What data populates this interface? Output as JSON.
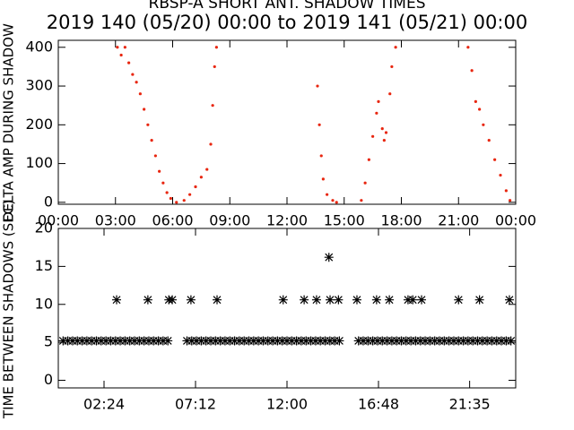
{
  "chart_data": [
    {
      "type": "scatter",
      "title": "RBSP-A SHORT ANT. SHADOW TIMES",
      "subtitle": "2019 140 (05/20) 00:00 to 2019 141 (05/21) 00:00",
      "y_label": "DELTA AMP DURING SHADOW",
      "xlim": [
        0,
        24
      ],
      "ylim": [
        -5,
        418
      ],
      "xticks": [
        {
          "value": 0,
          "label": "00:00"
        },
        {
          "value": 3,
          "label": "03:00"
        },
        {
          "value": 6,
          "label": "06:00"
        },
        {
          "value": 9,
          "label": "09:00"
        },
        {
          "value": 12,
          "label": "12:00"
        },
        {
          "value": 15,
          "label": "15:00"
        },
        {
          "value": 18,
          "label": "18:00"
        },
        {
          "value": 21,
          "label": "21:00"
        },
        {
          "value": 24,
          "label": "00:00"
        }
      ],
      "yticks": [
        0,
        100,
        200,
        300,
        400
      ],
      "marker": "dot",
      "series": [
        {
          "color": "#e8260f",
          "x": [
            3.1,
            3.3,
            3.5,
            3.7,
            3.9,
            4.1,
            4.3,
            4.5,
            4.7,
            4.9,
            5.1,
            5.3,
            5.5,
            5.7,
            5.9,
            6.2,
            6.6,
            6.9,
            7.2,
            7.5,
            7.8,
            8.0,
            8.1,
            8.2,
            8.3,
            13.6,
            13.7,
            13.8,
            13.9,
            14.1,
            14.4,
            14.6,
            15.9,
            16.1,
            16.3,
            16.5,
            16.7,
            16.8,
            17.0,
            17.1,
            17.2,
            17.4,
            17.5,
            17.7,
            21.5,
            21.7,
            21.9,
            22.1,
            22.3,
            22.6,
            22.9,
            23.2,
            23.5,
            23.7
          ],
          "values": [
            400,
            380,
            400,
            360,
            330,
            310,
            280,
            240,
            200,
            160,
            120,
            80,
            50,
            25,
            10,
            0,
            5,
            20,
            40,
            65,
            85,
            150,
            250,
            350,
            400,
            300,
            200,
            120,
            60,
            20,
            5,
            0,
            5,
            50,
            110,
            170,
            230,
            260,
            190,
            160,
            180,
            280,
            350,
            400,
            400,
            340,
            260,
            240,
            200,
            160,
            110,
            70,
            30,
            5
          ]
        }
      ]
    },
    {
      "type": "scatter",
      "y_label": "TIME BETWEEN SHADOWS (SEC)",
      "xlim": [
        0,
        24
      ],
      "ylim": [
        -1,
        20
      ],
      "xticks": [
        {
          "value": 2.4,
          "label": "02:24"
        },
        {
          "value": 7.2,
          "label": "07:12"
        },
        {
          "value": 12,
          "label": "12:00"
        },
        {
          "value": 16.8,
          "label": "16:48"
        },
        {
          "value": 21.583,
          "label": "21:35"
        }
      ],
      "yticks": [
        0,
        5,
        10,
        15,
        20
      ],
      "marker": "asterisk",
      "series": [
        {
          "color": "#000000",
          "x": [
            0.25,
            0.5,
            0.75,
            1,
            1.25,
            1.5,
            1.75,
            2,
            2.25,
            2.5,
            2.75,
            3,
            3.25,
            3.5,
            3.75,
            4,
            4.25,
            4.5,
            4.75,
            5,
            5.25,
            5.5,
            5.75,
            6.75,
            7,
            7.25,
            7.5,
            7.75,
            8,
            8.25,
            8.5,
            8.75,
            9,
            9.25,
            9.5,
            9.75,
            10,
            10.25,
            10.5,
            10.75,
            11,
            11.25,
            11.5,
            11.75,
            12,
            12.25,
            12.5,
            12.75,
            13,
            13.25,
            13.5,
            13.75,
            14,
            14.25,
            14.5,
            14.75,
            15.75,
            16,
            16.25,
            16.5,
            16.75,
            17,
            17.25,
            17.5,
            17.75,
            18,
            18.25,
            18.5,
            18.75,
            19,
            19.25,
            19.5,
            19.75,
            20,
            20.25,
            20.5,
            20.75,
            21,
            21.25,
            21.5,
            21.75,
            22,
            22.25,
            22.5,
            22.75,
            23,
            23.25,
            23.5,
            23.75,
            3.06,
            4.7,
            5.8,
            5.98,
            6.96,
            8.33,
            11.8,
            12.9,
            13.55,
            14.2,
            14.26,
            14.7,
            15.67,
            16.7,
            17.37,
            18.35,
            18.6,
            19.06,
            21.0,
            22.1,
            23.67
          ],
          "values": [
            5.2,
            5.2,
            5.2,
            5.2,
            5.2,
            5.2,
            5.2,
            5.2,
            5.2,
            5.2,
            5.2,
            5.2,
            5.2,
            5.2,
            5.2,
            5.2,
            5.2,
            5.2,
            5.2,
            5.2,
            5.2,
            5.2,
            5.2,
            5.2,
            5.2,
            5.2,
            5.2,
            5.2,
            5.2,
            5.2,
            5.2,
            5.2,
            5.2,
            5.2,
            5.2,
            5.2,
            5.2,
            5.2,
            5.2,
            5.2,
            5.2,
            5.2,
            5.2,
            5.2,
            5.2,
            5.2,
            5.2,
            5.2,
            5.2,
            5.2,
            5.2,
            5.2,
            5.2,
            5.2,
            5.2,
            5.2,
            5.2,
            5.2,
            5.2,
            5.2,
            5.2,
            5.2,
            5.2,
            5.2,
            5.2,
            5.2,
            5.2,
            5.2,
            5.2,
            5.2,
            5.2,
            5.2,
            5.2,
            5.2,
            5.2,
            5.2,
            5.2,
            5.2,
            5.2,
            5.2,
            5.2,
            5.2,
            5.2,
            5.2,
            5.2,
            5.2,
            5.2,
            5.2,
            5.2,
            10.6,
            10.6,
            10.6,
            10.6,
            10.6,
            10.6,
            10.6,
            10.6,
            10.6,
            16.2,
            10.6,
            10.6,
            10.6,
            10.6,
            10.6,
            10.6,
            10.6,
            10.6,
            10.6,
            10.6,
            10.6
          ]
        }
      ]
    }
  ]
}
